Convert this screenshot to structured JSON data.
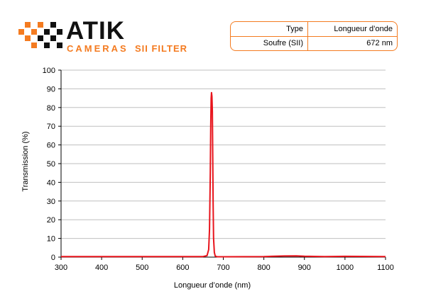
{
  "brand": {
    "name": "ATIK",
    "sub_word": "CAMERAS",
    "sub_product": "SII FILTER",
    "accent_color": "#f47b20",
    "dark_color": "#111111"
  },
  "spec_table": {
    "rows": [
      [
        "Type",
        "Longueur d’onde"
      ],
      [
        "Soufre (SII)",
        "672 nm"
      ]
    ]
  },
  "chart_data": {
    "type": "line",
    "xlabel": "Longueur d’onde (nm)",
    "ylabel": "Transmission (%)",
    "xlim": [
      300,
      1100
    ],
    "ylim": [
      0,
      100
    ],
    "xticks": [
      300,
      400,
      500,
      600,
      700,
      800,
      900,
      1000,
      1100
    ],
    "yticks": [
      0,
      10,
      20,
      30,
      40,
      50,
      60,
      70,
      80,
      90,
      100
    ],
    "grid": true,
    "series": [
      {
        "color": "#e8141c",
        "x": [
          300,
          600,
          650,
          660,
          664,
          666,
          668,
          669,
          670,
          671,
          672,
          673,
          674,
          675,
          676,
          678,
          680,
          685,
          700,
          800,
          850,
          880,
          900,
          950,
          1000,
          1100
        ],
        "y": [
          0.3,
          0.3,
          0.3,
          0.8,
          4,
          15,
          45,
          70,
          85,
          88,
          86,
          78,
          55,
          28,
          10,
          2.5,
          0.6,
          0.2,
          0.2,
          0.3,
          0.6,
          0.7,
          0.5,
          0.3,
          0.4,
          0.3
        ]
      }
    ]
  }
}
